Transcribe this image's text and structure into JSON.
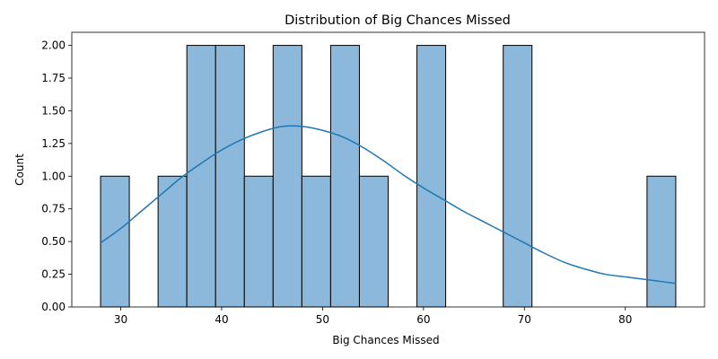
{
  "chart_data": {
    "type": "bar",
    "title": "Distribution of Big Chances Missed",
    "xlabel": "Big Chances Missed",
    "ylabel": "Count",
    "xlim": [
      25.15,
      87.85
    ],
    "ylim": [
      0,
      2.1
    ],
    "xticks": [
      30,
      40,
      50,
      60,
      70,
      80
    ],
    "yticks": [
      0.0,
      0.25,
      0.5,
      0.75,
      1.0,
      1.25,
      1.5,
      1.75,
      2.0
    ],
    "ytick_labels": [
      "0.00",
      "0.25",
      "0.50",
      "0.75",
      "1.00",
      "1.25",
      "1.50",
      "1.75",
      "2.00"
    ],
    "grid": false,
    "bin_start": 28,
    "bin_width": 2.85,
    "counts": [
      1,
      0,
      1,
      2,
      2,
      1,
      2,
      1,
      2,
      1,
      0,
      2,
      0,
      0,
      2,
      0,
      0,
      0,
      0,
      1
    ],
    "kde": {
      "x": [
        28,
        30,
        32,
        34,
        36,
        38,
        40,
        42,
        44,
        46,
        48,
        50,
        52,
        54,
        56,
        58,
        60,
        62,
        64,
        66,
        68,
        70,
        72,
        74,
        76,
        78,
        80,
        82,
        84,
        85
      ],
      "y": [
        0.49,
        0.6,
        0.73,
        0.86,
        0.99,
        1.1,
        1.2,
        1.28,
        1.34,
        1.38,
        1.38,
        1.35,
        1.3,
        1.22,
        1.12,
        1.01,
        0.91,
        0.82,
        0.73,
        0.65,
        0.57,
        0.49,
        0.41,
        0.34,
        0.29,
        0.25,
        0.23,
        0.21,
        0.19,
        0.18
      ]
    },
    "colors": {
      "bar_fill": "#8cb8db",
      "bar_edge": "#000000",
      "kde_line": "#1f77b4"
    }
  }
}
